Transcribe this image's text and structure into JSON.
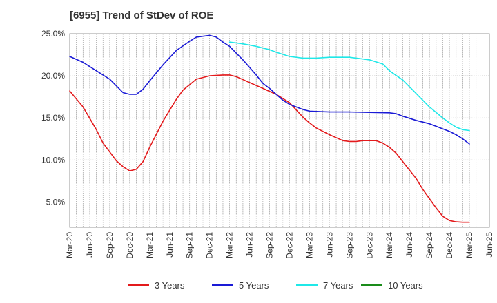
{
  "chart_data": {
    "type": "line",
    "title": "[6955]  Trend of StDev of ROE",
    "xlabel": "",
    "ylabel": "",
    "y_tick_labels": [
      "5.0%",
      "10.0%",
      "15.0%",
      "20.0%",
      "25.0%"
    ],
    "ylim": [
      2.0,
      25.0
    ],
    "x_tick_labels": [
      "Mar-20",
      "Jun-20",
      "Sep-20",
      "Dec-20",
      "Mar-21",
      "Jun-21",
      "Sep-21",
      "Dec-21",
      "Mar-22",
      "Jun-22",
      "Sep-22",
      "Dec-22",
      "Mar-23",
      "Jun-23",
      "Sep-23",
      "Dec-23",
      "Mar-24",
      "Jun-24",
      "Sep-24",
      "Dec-24",
      "Mar-25",
      "Jun-25"
    ],
    "grid": true,
    "legend_position": "bottom",
    "series": [
      {
        "name": "3 Years",
        "color": "#e31a1c",
        "x": [
          "Mar-20",
          "May-20",
          "Jul-20",
          "Aug-20",
          "Oct-20",
          "Nov-20",
          "Dec-20",
          "Jan-21",
          "Feb-21",
          "Mar-21",
          "May-21",
          "Jul-21",
          "Aug-21",
          "Oct-21",
          "Dec-21",
          "Feb-22",
          "Mar-22",
          "Apr-22",
          "Jun-22",
          "Aug-22",
          "Oct-22",
          "Dec-22",
          "Feb-23",
          "Mar-23",
          "Apr-23",
          "Jun-23",
          "Aug-23",
          "Sep-23",
          "Oct-23",
          "Nov-23",
          "Jan-24",
          "Feb-24",
          "Mar-24",
          "Apr-24",
          "May-24",
          "Jul-24",
          "Aug-24",
          "Sep-24",
          "Oct-24",
          "Nov-24",
          "Dec-24",
          "Jan-25",
          "Feb-25",
          "Mar-25"
        ],
        "values": [
          18.2,
          16.3,
          13.6,
          12.0,
          9.9,
          9.2,
          8.7,
          8.9,
          9.8,
          11.5,
          14.6,
          17.2,
          18.3,
          19.6,
          20.0,
          20.1,
          20.1,
          19.9,
          19.2,
          18.5,
          17.8,
          16.8,
          15.1,
          14.4,
          13.8,
          13.0,
          12.3,
          12.2,
          12.2,
          12.3,
          12.3,
          12.0,
          11.5,
          10.8,
          9.8,
          7.8,
          6.5,
          5.4,
          4.3,
          3.3,
          2.8,
          2.65,
          2.6,
          2.6
        ]
      },
      {
        "name": "5 Years",
        "color": "#1a1ad6",
        "x": [
          "Mar-20",
          "May-20",
          "Jul-20",
          "Sep-20",
          "Oct-20",
          "Nov-20",
          "Dec-20",
          "Jan-21",
          "Feb-21",
          "Mar-21",
          "May-21",
          "Jul-21",
          "Sep-21",
          "Oct-21",
          "Dec-21",
          "Jan-22",
          "Feb-22",
          "Mar-22",
          "May-22",
          "Jul-22",
          "Aug-22",
          "Sep-22",
          "Oct-22",
          "Nov-22",
          "Dec-22",
          "Feb-23",
          "Mar-23",
          "Jun-23",
          "Sep-23",
          "Dec-23",
          "Mar-24",
          "Apr-24",
          "May-24",
          "Jul-24",
          "Sep-24",
          "Oct-24",
          "Nov-24",
          "Dec-24",
          "Jan-25",
          "Feb-25",
          "Mar-25"
        ],
        "values": [
          22.3,
          21.6,
          20.6,
          19.6,
          18.8,
          18.0,
          17.8,
          17.8,
          18.4,
          19.4,
          21.3,
          23.0,
          24.1,
          24.6,
          24.8,
          24.6,
          24.0,
          23.5,
          21.9,
          20.1,
          19.1,
          18.5,
          17.8,
          17.1,
          16.6,
          16.0,
          15.8,
          15.7,
          15.7,
          15.65,
          15.6,
          15.5,
          15.2,
          14.7,
          14.3,
          14.0,
          13.7,
          13.4,
          13.0,
          12.5,
          11.9
        ]
      },
      {
        "name": "7 Years",
        "color": "#1fe8e8",
        "x": [
          "Mar-22",
          "May-22",
          "Jul-22",
          "Sep-22",
          "Oct-22",
          "Dec-22",
          "Feb-23",
          "Apr-23",
          "Jun-23",
          "Sep-23",
          "Oct-23",
          "Dec-23",
          "Feb-24",
          "Mar-24",
          "May-24",
          "Jul-24",
          "Sep-24",
          "Nov-24",
          "Dec-24",
          "Jan-25",
          "Feb-25",
          "Mar-25"
        ],
        "values": [
          24.0,
          23.8,
          23.5,
          23.1,
          22.8,
          22.3,
          22.1,
          22.1,
          22.2,
          22.2,
          22.1,
          21.9,
          21.4,
          20.6,
          19.5,
          17.9,
          16.3,
          15.0,
          14.4,
          13.9,
          13.6,
          13.5
        ]
      },
      {
        "name": "10 Years",
        "color": "#1a8c1a",
        "x": [],
        "values": []
      }
    ]
  }
}
